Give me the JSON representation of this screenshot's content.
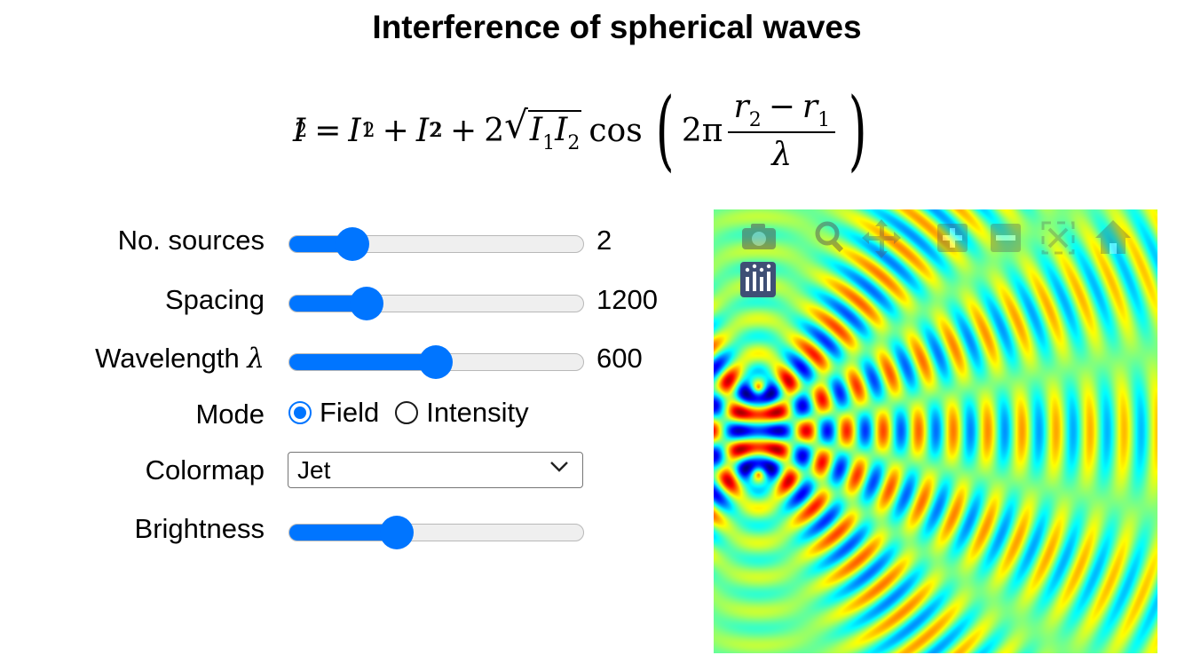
{
  "title": "Interference of spherical waves",
  "formula": {
    "lhs": "I",
    "lhs_exp": "2",
    "t1": "I",
    "t1_sub": "1",
    "t1_exp": "2",
    "t2": "I",
    "t2_sub": "2",
    "t2_exp": "2",
    "coef": "2",
    "rad_a": "I",
    "rad_a_sub": "1",
    "rad_b": "I",
    "rad_b_sub": "2",
    "func": "cos",
    "two_pi": "2π",
    "num_a": "r",
    "num_a_sub": "2",
    "num_minus": "−",
    "num_b": "r",
    "num_b_sub": "1",
    "den": "λ",
    "eq": "=",
    "plus": "+"
  },
  "controls": {
    "sources": {
      "label": "No. sources",
      "value": "2",
      "fraction": 0.18
    },
    "spacing": {
      "label": "Spacing",
      "value": "1200",
      "fraction": 0.235
    },
    "wavelength": {
      "label": "Wavelength",
      "symbol": "λ",
      "value": "600",
      "fraction": 0.5
    },
    "mode": {
      "label": "Mode",
      "options": [
        "Field",
        "Intensity"
      ],
      "selected": "Field"
    },
    "colormap": {
      "label": "Colormap",
      "value": "Jet"
    },
    "brightness": {
      "label": "Brightness",
      "fraction": 0.35
    }
  },
  "plot": {
    "colormap": "jet",
    "modebar_icons": [
      "camera-icon",
      "zoom-icon",
      "pan-icon",
      "zoom-in-icon",
      "zoom-out-icon",
      "autoscale-icon",
      "home-icon",
      "plotly-logo-icon"
    ]
  }
}
